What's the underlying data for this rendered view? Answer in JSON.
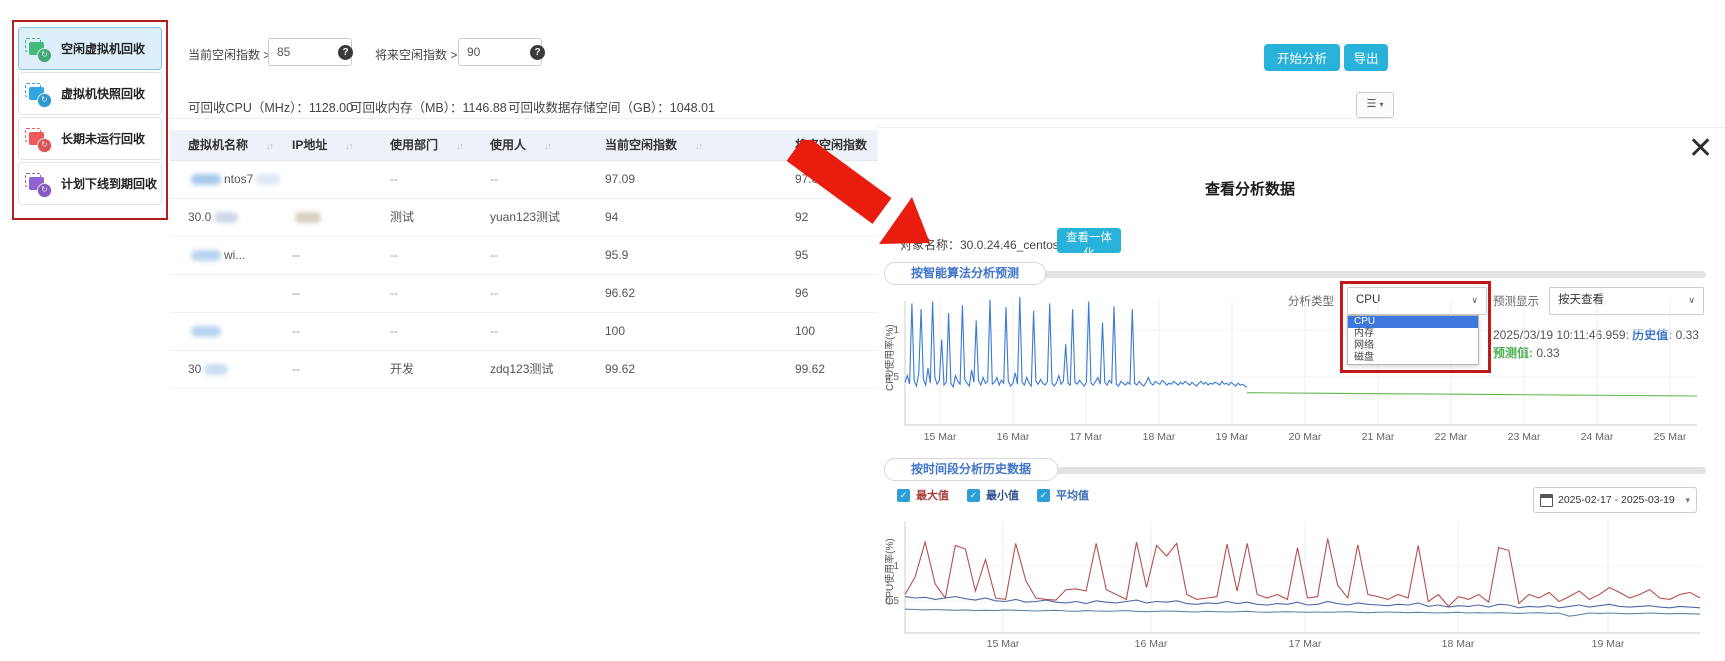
{
  "sidebar": {
    "items": [
      {
        "label": "空闲虚拟机回收",
        "color": "#45b97c",
        "active": true
      },
      {
        "label": "虚拟机快照回收",
        "color": "#2fa7e0",
        "active": false
      },
      {
        "label": "长期未运行回收",
        "color": "#f05a5a",
        "active": false
      },
      {
        "label": "计划下线到期回收",
        "color": "#9061d2",
        "active": false
      }
    ],
    "icon_badge_glyph": "↻"
  },
  "filters": {
    "current_label": "当前空闲指数 >",
    "current_value": "85",
    "future_label": "将来空闲指数 >",
    "future_value": "90",
    "help_glyph": "?"
  },
  "stats": {
    "cpu": "可回收CPU（MHz）：1128.00",
    "memory": "可回收内存（MB）：1146.88",
    "storage": "可回收数据存储空间（GB）：1048.01"
  },
  "toolbar": {
    "analyze_label": "开始分析",
    "export_label": "导出",
    "list_icon": "☰",
    "caret": "▾"
  },
  "table": {
    "columns": [
      "虚拟机名称",
      "IP地址",
      "使用部门",
      "使用人",
      "当前空闲指数",
      "将来空闲指数"
    ],
    "sort_glyph": "↓↑",
    "rows": [
      {
        "name": "ntos7",
        "pre_blur": "#a8c9ec",
        "post_blur": "#dde8f5",
        "ip": "",
        "ip_blur": "",
        "dept": "--",
        "user": "--",
        "cur": "97.09",
        "fut": "97.09"
      },
      {
        "name": "30.0",
        "pre_blur": "",
        "post_blur": "#cfd8e8",
        "ip": "",
        "ip_blur": "#d8cfc2",
        "dept": "测试",
        "user": "yuan123测试",
        "cur": "94",
        "fut": "92"
      },
      {
        "name": "wi...",
        "pre_blur": "#b9d4f0",
        "post_blur": "",
        "ip": "--",
        "ip_blur": "",
        "dept": "--",
        "user": "--",
        "cur": "95.9",
        "fut": "95"
      },
      {
        "name": "",
        "pre_blur": "",
        "post_blur": "",
        "ip": "--",
        "ip_blur": "",
        "dept": "--",
        "user": "--",
        "cur": "96.62",
        "fut": "96"
      },
      {
        "name": "",
        "pre_blur": "#b9d4f0",
        "post_blur": "",
        "ip": "--",
        "ip_blur": "",
        "dept": "--",
        "user": "--",
        "cur": "100",
        "fut": "100"
      },
      {
        "name": "30",
        "pre_blur": "",
        "post_blur": "#c9dcf2",
        "ip": "--",
        "ip_blur": "",
        "dept": "开发",
        "user": "zdq123测试",
        "cur": "99.62",
        "fut": "99.62"
      }
    ]
  },
  "modal": {
    "title": "查看分析数据",
    "close_glyph": "✕",
    "object_label": "对象名称：30.0.24.46_centos7.9_zdq",
    "view_button": "查看一体化",
    "section1": "按智能算法分析预测",
    "analysis_type_label": "分析类型",
    "analysis_type_value": "CPU",
    "analysis_options": [
      "CPU",
      "内存",
      "网络",
      "磁盘"
    ],
    "forecast_label": "预测显示",
    "forecast_value": "按天查看",
    "tooltip_time": "2025/03/19 10:11:46.959:",
    "history_label": "历史值:",
    "history_value": "0.33",
    "predict_label": "预测值:",
    "predict_value": "0.33",
    "section2": "按时间段分析历史数据",
    "legend": [
      {
        "label": "最大值",
        "color": "#a8403d"
      },
      {
        "label": "最小值",
        "color": "#2f4f8f"
      },
      {
        "label": "平均值",
        "color": "#3a6cb4"
      }
    ],
    "check_glyph": "✓",
    "date_range": "2025-02-17 - 2025-03-19"
  },
  "chart_data": [
    {
      "type": "line",
      "title": "按智能算法分析预测",
      "ylabel": "CPU使用率(%)",
      "yticks": [
        0.5,
        1
      ],
      "ylim": [
        0,
        1.45
      ],
      "grid": true,
      "xticks": [
        "15 Mar",
        "16 Mar",
        "17 Mar",
        "18 Mar",
        "19 Mar",
        "20 Mar",
        "21 Mar",
        "22 Mar",
        "23 Mar",
        "24 Mar",
        "25 Mar"
      ],
      "series": [
        {
          "name": "历史值",
          "color": "#3a7bd5",
          "span": [
            0,
            0.432
          ],
          "values": [
            0.45,
            0.52,
            0.43,
            1.28,
            0.46,
            0.41,
            0.55,
            1.22,
            0.48,
            0.42,
            0.6,
            0.44,
            1.3,
            0.5,
            0.43,
            0.47,
            0.9,
            0.42,
            0.45,
            1.18,
            0.44,
            0.4,
            0.52,
            0.46,
            0.43,
            1.26,
            0.48,
            0.44,
            0.41,
            0.58,
            0.45,
            1.1,
            0.47,
            0.42,
            0.5,
            0.44,
            0.46,
            1.32,
            0.43,
            0.45,
            0.5,
            0.42,
            0.47,
            0.44,
            1.24,
            0.46,
            0.41,
            0.44,
            0.55,
            0.43,
            1.35,
            0.45,
            0.42,
            0.5,
            0.44,
            0.41,
            1.2,
            0.46,
            0.43,
            0.48,
            0.44,
            0.42,
            0.46,
            1.28,
            0.44,
            0.41,
            0.45,
            0.52,
            0.43,
            0.46,
            0.85,
            0.44,
            0.42,
            1.22,
            0.45,
            0.43,
            0.47,
            0.44,
            0.41,
            0.45,
            1.3,
            0.44,
            0.42,
            0.46,
            0.5,
            0.43,
            1.08,
            0.45,
            0.42,
            0.47,
            0.44,
            1.25,
            0.43,
            0.41,
            0.46,
            0.44,
            0.42,
            0.45,
            0.43,
            1.22,
            0.44,
            0.42,
            0.46,
            0.43,
            0.41,
            0.45,
            0.5,
            0.44,
            0.42,
            0.46,
            0.44,
            0.43,
            0.47,
            0.45,
            0.42,
            0.44,
            0.43,
            0.46,
            0.44,
            0.42,
            0.45,
            0.43,
            0.46,
            0.44,
            0.42,
            0.45,
            0.43,
            0.41,
            0.44,
            0.46,
            0.43,
            0.45,
            0.42,
            0.44,
            0.43,
            0.45,
            0.44,
            0.42,
            0.46,
            0.43,
            0.44,
            0.42,
            0.45,
            0.43,
            0.41,
            0.44,
            0.42,
            0.43,
            0.41,
            0.4
          ]
        },
        {
          "name": "预测值",
          "color": "#64b752",
          "span": [
            0.432,
            1
          ],
          "values": [
            0.34,
            0.335,
            0.33,
            0.325,
            0.32,
            0.315,
            0.31,
            0.305
          ]
        }
      ]
    },
    {
      "type": "line",
      "title": "按时间段分析历史数据",
      "ylabel": "CPU使用率(%)",
      "yticks": [
        0.5,
        1
      ],
      "ylim": [
        0,
        1.6
      ],
      "grid": true,
      "xticks": [
        "15 Mar",
        "16 Mar",
        "17 Mar",
        "18 Mar",
        "19 Mar"
      ],
      "series": [
        {
          "name": "最大值",
          "color": "#b5504e",
          "span": [
            0,
            1
          ],
          "values": [
            0.55,
            0.8,
            1.3,
            0.7,
            0.5,
            1.25,
            1.2,
            0.6,
            1.05,
            0.5,
            0.48,
            1.28,
            0.75,
            0.5,
            0.48,
            0.47,
            0.62,
            0.63,
            0.6,
            1.28,
            0.62,
            0.55,
            0.48,
            1.3,
            0.65,
            1.25,
            1.1,
            1.28,
            0.55,
            0.48,
            0.5,
            0.52,
            1.27,
            0.6,
            1.28,
            0.55,
            0.5,
            0.55,
            0.48,
            1.22,
            0.5,
            0.52,
            1.35,
            0.68,
            0.5,
            1.26,
            0.55,
            0.52,
            0.48,
            0.55,
            0.5,
            1.25,
            0.45,
            0.55,
            0.38,
            0.52,
            0.48,
            0.55,
            0.44,
            1.22,
            1.18,
            0.42,
            0.55,
            0.5,
            0.58,
            0.45,
            0.52,
            0.6,
            0.48,
            0.55,
            0.65,
            0.58,
            0.5,
            0.55,
            0.62,
            0.5,
            0.48,
            0.55,
            0.58,
            0.5
          ]
        },
        {
          "name": "平均值",
          "color": "#4f69a8",
          "span": [
            0,
            1
          ],
          "values": [
            0.52,
            0.5,
            0.51,
            0.48,
            0.5,
            0.52,
            0.49,
            0.47,
            0.5,
            0.46,
            0.45,
            0.48,
            0.44,
            0.45,
            0.47,
            0.44,
            0.43,
            0.45,
            0.42,
            0.46,
            0.44,
            0.43,
            0.45,
            0.47,
            0.43,
            0.45,
            0.44,
            0.46,
            0.42,
            0.41,
            0.43,
            0.42,
            0.45,
            0.42,
            0.44,
            0.41,
            0.4,
            0.42,
            0.41,
            0.44,
            0.4,
            0.41,
            0.45,
            0.42,
            0.4,
            0.43,
            0.41,
            0.4,
            0.39,
            0.41,
            0.4,
            0.43,
            0.38,
            0.4,
            0.37,
            0.39,
            0.38,
            0.4,
            0.37,
            0.41,
            0.4,
            0.36,
            0.38,
            0.37,
            0.39,
            0.36,
            0.38,
            0.4,
            0.37,
            0.39,
            0.41,
            0.38,
            0.37,
            0.38,
            0.39,
            0.37,
            0.36,
            0.38,
            0.37,
            0.36
          ]
        },
        {
          "name": "最小值",
          "color": "#5d87a8",
          "span": [
            0,
            1
          ],
          "values": [
            0.34,
            0.335,
            0.33,
            0.335,
            0.33,
            0.325,
            0.33,
            0.32,
            0.325,
            0.32,
            0.33,
            0.325,
            0.32,
            0.315,
            0.32,
            0.325,
            0.315,
            0.31,
            0.32,
            0.315,
            0.31,
            0.315,
            0.32,
            0.31,
            0.305,
            0.31,
            0.315,
            0.31,
            0.305,
            0.3,
            0.31,
            0.305,
            0.3,
            0.305,
            0.31,
            0.3,
            0.295,
            0.3,
            0.305,
            0.3,
            0.295,
            0.3,
            0.295,
            0.3,
            0.305,
            0.295,
            0.29,
            0.295,
            0.3,
            0.295,
            0.29,
            0.295,
            0.29,
            0.285,
            0.29,
            0.295,
            0.285,
            0.29,
            0.285,
            0.29,
            0.285,
            0.28,
            0.285,
            0.29,
            0.28,
            0.285,
            0.24,
            0.26,
            0.285,
            0.28,
            0.285,
            0.28,
            0.275,
            0.28,
            0.285,
            0.28,
            0.275,
            0.28,
            0.275,
            0.27
          ]
        }
      ]
    }
  ]
}
